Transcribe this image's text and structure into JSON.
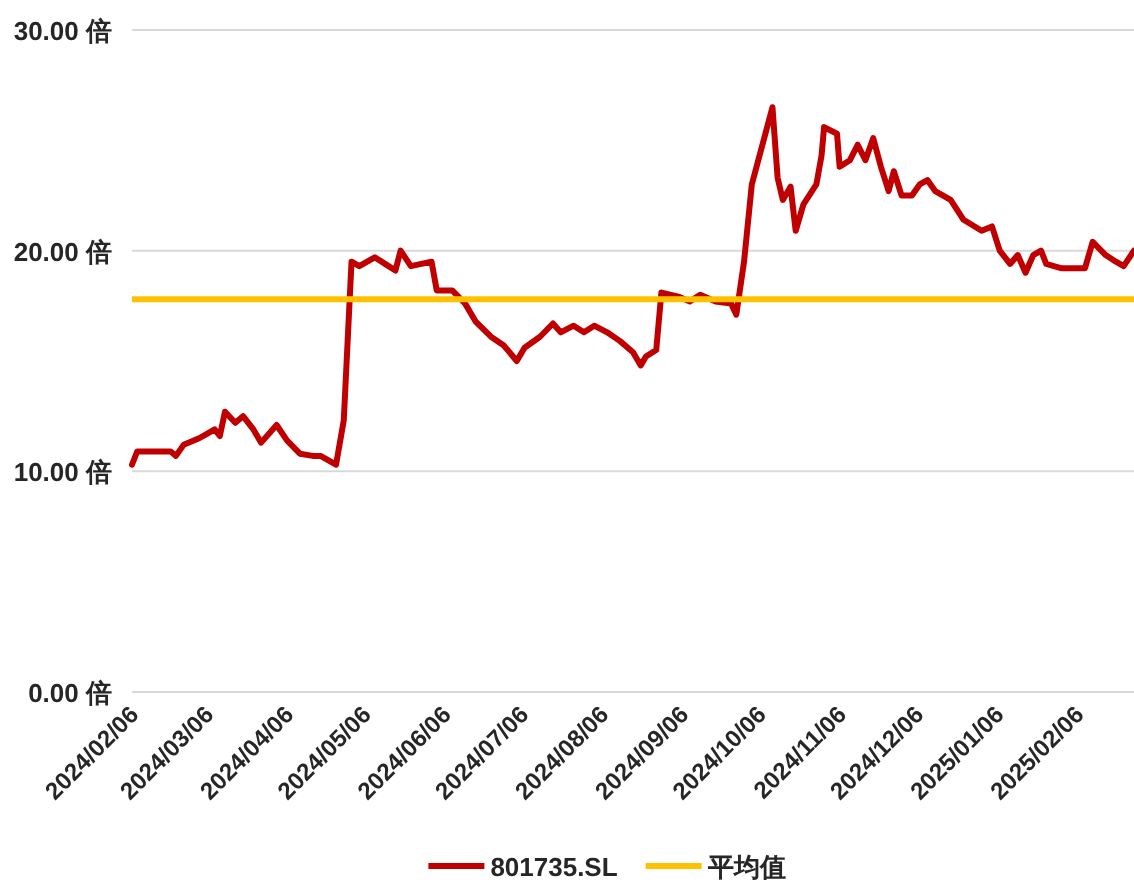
{
  "chart_data": {
    "type": "line",
    "x": [
      "2024-02-06",
      "2024-02-08",
      "2024-02-21",
      "2024-02-23",
      "2024-02-26",
      "2024-03-03",
      "2024-03-06",
      "2024-03-09",
      "2024-03-11",
      "2024-03-13",
      "2024-03-17",
      "2024-03-20",
      "2024-03-24",
      "2024-03-27",
      "2024-04-02",
      "2024-04-06",
      "2024-04-11",
      "2024-04-16",
      "2024-04-19",
      "2024-04-25",
      "2024-04-28",
      "2024-05-01",
      "2024-05-04",
      "2024-05-10",
      "2024-05-14",
      "2024-05-18",
      "2024-05-20",
      "2024-05-24",
      "2024-05-28",
      "2024-06-01",
      "2024-06-03",
      "2024-06-09",
      "2024-06-14",
      "2024-06-18",
      "2024-06-24",
      "2024-06-29",
      "2024-07-04",
      "2024-07-07",
      "2024-07-13",
      "2024-07-18",
      "2024-07-21",
      "2024-07-26",
      "2024-07-30",
      "2024-08-03",
      "2024-08-08",
      "2024-08-13",
      "2024-08-18",
      "2024-08-21",
      "2024-08-23",
      "2024-08-27",
      "2024-08-29",
      "2024-09-05",
      "2024-09-09",
      "2024-09-13",
      "2024-09-19",
      "2024-09-25",
      "2024-09-27",
      "2024-09-30",
      "2024-10-03",
      "2024-10-11",
      "2024-10-13",
      "2024-10-15",
      "2024-10-18",
      "2024-10-20",
      "2024-10-23",
      "2024-10-28",
      "2024-10-30",
      "2024-10-31",
      "2024-11-05",
      "2024-11-06",
      "2024-11-10",
      "2024-11-13",
      "2024-11-16",
      "2024-11-19",
      "2024-11-22",
      "2024-11-25",
      "2024-11-27",
      "2024-11-30",
      "2024-12-04",
      "2024-12-07",
      "2024-12-10",
      "2024-12-13",
      "2024-12-19",
      "2024-12-24",
      "2024-12-31",
      "2025-01-04",
      "2025-01-07",
      "2025-01-11",
      "2025-01-14",
      "2025-01-17",
      "2025-01-20",
      "2025-01-23",
      "2025-01-25",
      "2025-01-31",
      "2025-02-09",
      "2025-02-12",
      "2025-02-17",
      "2025-02-21",
      "2025-02-24",
      "2025-02-28"
    ],
    "series": [
      {
        "name": "801735.SL",
        "color": "#c00000",
        "values": [
          10.3,
          10.9,
          10.9,
          10.7,
          11.2,
          11.5,
          11.7,
          11.9,
          11.6,
          12.7,
          12.2,
          12.5,
          11.9,
          11.3,
          12.1,
          11.4,
          10.8,
          10.7,
          10.7,
          10.3,
          12.3,
          19.5,
          19.3,
          19.7,
          19.4,
          19.1,
          20.0,
          19.3,
          19.4,
          19.5,
          18.2,
          18.2,
          17.6,
          16.8,
          16.1,
          15.7,
          15.0,
          15.6,
          16.1,
          16.7,
          16.3,
          16.6,
          16.3,
          16.6,
          16.3,
          15.9,
          15.4,
          14.8,
          15.2,
          15.5,
          18.1,
          17.9,
          17.7,
          18.0,
          17.7,
          17.6,
          17.1,
          19.5,
          23.0,
          26.5,
          23.3,
          22.3,
          22.9,
          20.9,
          22.1,
          23.0,
          24.3,
          25.6,
          25.3,
          23.8,
          24.1,
          24.8,
          24.1,
          25.1,
          23.8,
          22.7,
          23.6,
          22.5,
          22.5,
          23.0,
          23.2,
          22.7,
          22.3,
          21.4,
          20.9,
          21.1,
          20.0,
          19.4,
          19.8,
          19.0,
          19.8,
          20.0,
          19.4,
          19.2,
          19.2,
          20.4,
          19.8,
          19.5,
          19.3,
          20.0
        ]
      }
    ],
    "ref_lines": [
      {
        "axis": "y",
        "value": 17.8,
        "label": "平均值",
        "color": "#ffc000"
      }
    ],
    "xlim": [
      "2024-02-06",
      "2025-02-28"
    ],
    "xticks": [
      {
        "value": "2024-02-06",
        "label": "2024/02/06"
      },
      {
        "value": "2024-03-06",
        "label": "2024/03/06"
      },
      {
        "value": "2024-04-06",
        "label": "2024/04/06"
      },
      {
        "value": "2024-05-06",
        "label": "2024/05/06"
      },
      {
        "value": "2024-06-06",
        "label": "2024/06/06"
      },
      {
        "value": "2024-07-06",
        "label": "2024/07/06"
      },
      {
        "value": "2024-08-06",
        "label": "2024/08/06"
      },
      {
        "value": "2024-09-06",
        "label": "2024/09/06"
      },
      {
        "value": "2024-10-06",
        "label": "2024/10/06"
      },
      {
        "value": "2024-11-06",
        "label": "2024/11/06"
      },
      {
        "value": "2024-12-06",
        "label": "2024/12/06"
      },
      {
        "value": "2025-01-06",
        "label": "2025/01/06"
      },
      {
        "value": "2025-02-06",
        "label": "2025/02/06"
      }
    ],
    "ylim": [
      0,
      30
    ],
    "yticks": [
      {
        "value": 0,
        "label": "0.00 倍"
      },
      {
        "value": 10,
        "label": "10.00 倍"
      },
      {
        "value": 20,
        "label": "20.00 倍"
      },
      {
        "value": 30,
        "label": "30.00 倍"
      }
    ],
    "grid": "y",
    "legend": "bottom",
    "marker": "none",
    "line_style": "solid"
  }
}
